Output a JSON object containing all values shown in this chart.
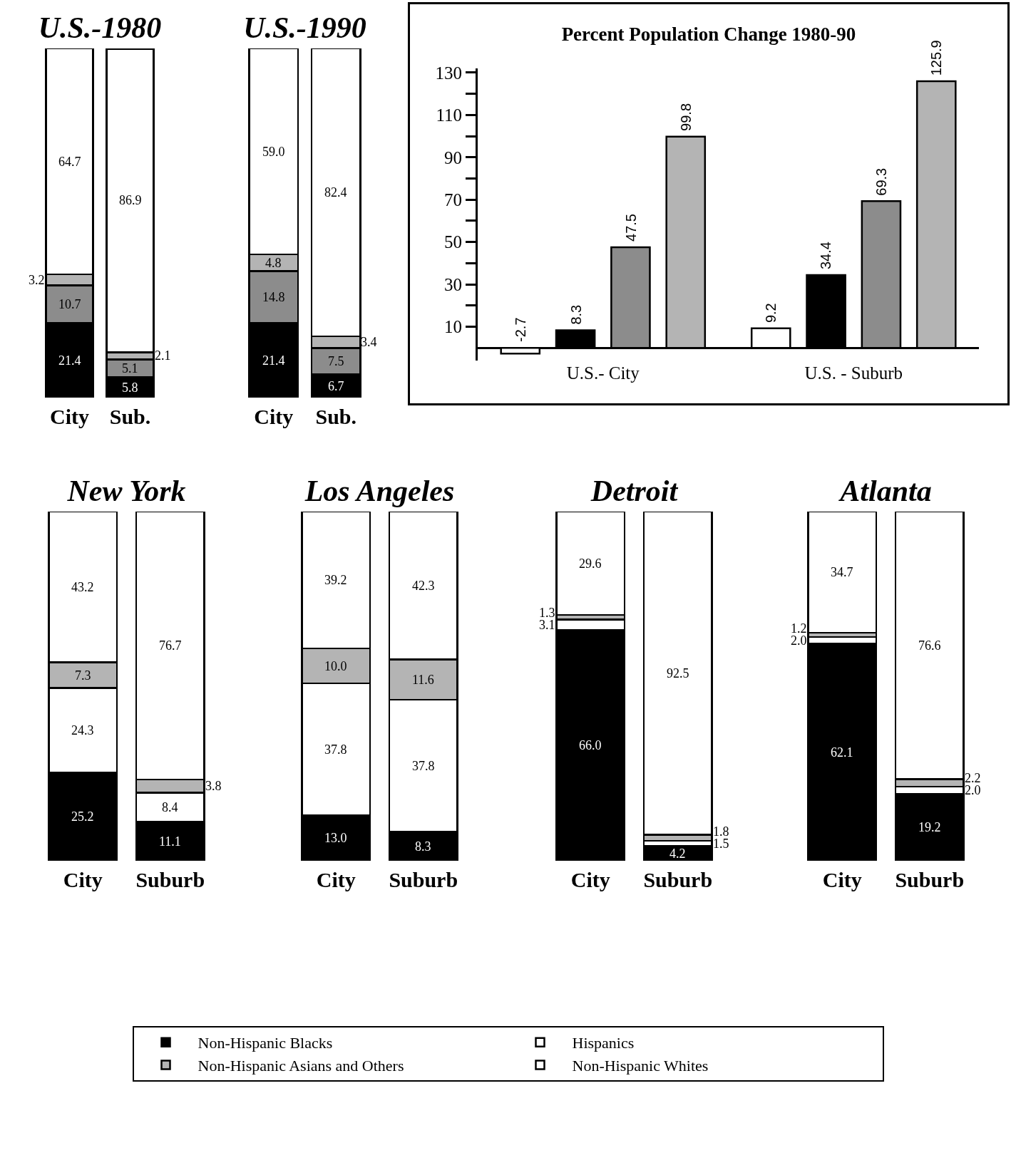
{
  "chart_data": [
    {
      "type": "bar",
      "title": "U.S.-1980",
      "categories": [
        "City",
        "Sub."
      ],
      "stacked": true,
      "series": [
        {
          "color": "#000000",
          "values": [
            21.4,
            5.8
          ],
          "value_labels": [
            "21.4",
            "5.8"
          ]
        },
        {
          "color": "#8c8c8c",
          "values": [
            10.7,
            5.1
          ],
          "value_labels": [
            "10.7",
            "5.1"
          ]
        },
        {
          "color": "#b4b4b4",
          "values": [
            3.2,
            2.1
          ],
          "value_labels": [
            "3.2",
            "2.1"
          ]
        },
        {
          "color": "#ffffff",
          "values": [
            64.7,
            86.9
          ],
          "value_labels": [
            "64.7",
            "86.9"
          ]
        }
      ]
    },
    {
      "type": "bar",
      "title": "U.S.-1990",
      "categories": [
        "City",
        "Sub."
      ],
      "stacked": true,
      "series": [
        {
          "color": "#000000",
          "values": [
            21.4,
            6.7
          ],
          "value_labels": [
            "21.4",
            "6.7"
          ]
        },
        {
          "color": "#8c8c8c",
          "values": [
            14.8,
            7.5
          ],
          "value_labels": [
            "14.8",
            "7.5"
          ]
        },
        {
          "color": "#b4b4b4",
          "values": [
            4.8,
            3.4
          ],
          "value_labels": [
            "4.8",
            "3.4"
          ]
        },
        {
          "color": "#ffffff",
          "values": [
            59.0,
            82.4
          ],
          "value_labels": [
            "59.0",
            "82.4"
          ]
        }
      ]
    },
    {
      "type": "bar",
      "title": "Percent Population Change 1980-90",
      "categories": [
        "U.S.- City",
        "U.S. - Suburb"
      ],
      "ylim": [
        -6,
        132
      ],
      "yticks": [
        10,
        {
          "value": 20,
          "label": null
        },
        30,
        {
          "value": 40,
          "label": null
        },
        50,
        {
          "value": 60,
          "label": null
        },
        70,
        {
          "value": 80,
          "label": null
        },
        90,
        {
          "value": 100,
          "label": null
        },
        110,
        {
          "value": 120,
          "label": null
        },
        130
      ],
      "data_labels": true,
      "series": [
        {
          "color": "#ffffff",
          "values": [
            -2.7,
            9.2
          ]
        },
        {
          "color": "#000000",
          "values": [
            8.3,
            34.4
          ]
        },
        {
          "color": "#8c8c8c",
          "values": [
            47.5,
            69.3
          ]
        },
        {
          "color": "#b4b4b4",
          "values": [
            99.8,
            125.9
          ]
        }
      ]
    },
    {
      "type": "bar",
      "title": "New York",
      "categories": [
        "City",
        "Suburb"
      ],
      "stacked": true,
      "series": [
        {
          "color": "#000000",
          "values": [
            25.2,
            11.1
          ],
          "value_labels": [
            "25.2",
            "11.1"
          ]
        },
        {
          "color": "#ffffff",
          "values": [
            24.3,
            8.4
          ],
          "value_labels": [
            "24.3",
            "8.4"
          ]
        },
        {
          "color": "#b4b4b4",
          "values": [
            7.3,
            3.8
          ],
          "value_labels": [
            "7.3",
            "3.8"
          ]
        },
        {
          "color": "#ffffff",
          "values": [
            43.2,
            76.7
          ],
          "value_labels": [
            "43.2",
            "76.7"
          ]
        }
      ]
    },
    {
      "type": "bar",
      "title": "Los Angeles",
      "categories": [
        "City",
        "Suburb"
      ],
      "stacked": true,
      "series": [
        {
          "color": "#000000",
          "values": [
            13.0,
            8.3
          ],
          "value_labels": [
            "13.0",
            "8.3"
          ]
        },
        {
          "color": "#ffffff",
          "values": [
            37.8,
            37.8
          ],
          "value_labels": [
            "37.8",
            "37.8"
          ]
        },
        {
          "color": "#b4b4b4",
          "values": [
            10.0,
            11.6
          ],
          "value_labels": [
            "10.0",
            "11.6"
          ]
        },
        {
          "color": "#ffffff",
          "values": [
            39.2,
            42.3
          ],
          "value_labels": [
            "39.2",
            "42.3"
          ]
        }
      ]
    },
    {
      "type": "bar",
      "title": "Detroit",
      "categories": [
        "City",
        "Suburb"
      ],
      "stacked": true,
      "series": [
        {
          "color": "#000000",
          "values": [
            66.0,
            4.2
          ],
          "value_labels": [
            "66.0",
            "4.2"
          ]
        },
        {
          "color": "#ffffff",
          "values": [
            3.1,
            1.5
          ],
          "value_labels": [
            "3.1",
            "1.5"
          ]
        },
        {
          "color": "#b4b4b4",
          "values": [
            1.3,
            1.8
          ],
          "value_labels": [
            "1.3",
            "1.8"
          ]
        },
        {
          "color": "#ffffff",
          "values": [
            29.6,
            92.5
          ],
          "value_labels": [
            "29.6",
            "92.5"
          ]
        }
      ]
    },
    {
      "type": "bar",
      "title": "Atlanta",
      "categories": [
        "City",
        "Suburb"
      ],
      "stacked": true,
      "legend": "bottom",
      "series": [
        {
          "name": "Non-Hispanic Blacks",
          "color": "#000000",
          "values": [
            62.1,
            19.2
          ],
          "value_labels": [
            "62.1",
            "19.2"
          ]
        },
        {
          "name": "Hispanics",
          "color": "#ffffff",
          "values": [
            2.0,
            2.0
          ],
          "value_labels": [
            "2.0",
            "2.0"
          ]
        },
        {
          "name": "Non-Hispanic Asians and Others",
          "color": "#b4b4b4",
          "values": [
            1.2,
            2.2
          ],
          "value_labels": [
            "1.2",
            "2.2"
          ]
        },
        {
          "name": "Non-Hispanic Whites",
          "color": "#ffffff",
          "values": [
            34.7,
            76.6
          ],
          "value_labels": [
            "34.7",
            "76.6"
          ]
        }
      ]
    }
  ]
}
